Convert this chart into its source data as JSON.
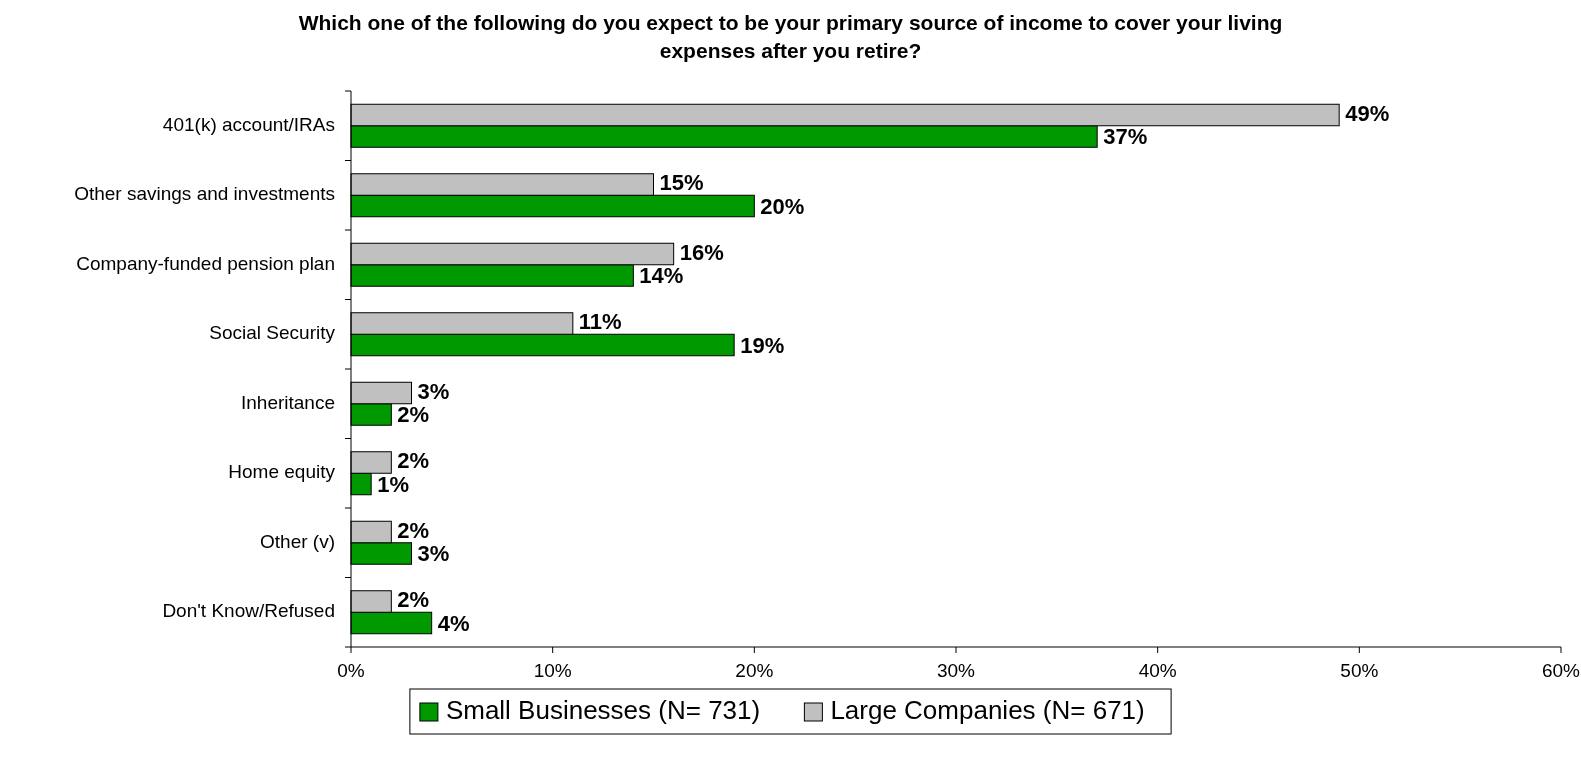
{
  "chart_data": {
    "type": "bar",
    "orientation": "horizontal",
    "title": "Which one of the following do you expect to be your primary source of income to cover your living expenses after you retire?",
    "categories": [
      "401(k) account/IRAs",
      "Other savings and investments",
      "Company-funded pension plan",
      "Social Security",
      "Inheritance",
      "Home equity",
      "Other  (v)",
      "Don't Know/Refused"
    ],
    "series": [
      {
        "name": "Small Businesses (N= 731)",
        "color": "#009900",
        "values": [
          37,
          20,
          14,
          19,
          2,
          1,
          3,
          4
        ],
        "value_labels": [
          "37%",
          "20%",
          "14%",
          "19%",
          "2%",
          "1%",
          "3%",
          "4%"
        ]
      },
      {
        "name": "Large Companies (N= 671)",
        "color": "#c0c0c0",
        "values": [
          49,
          15,
          16,
          11,
          3,
          2,
          2,
          2
        ],
        "value_labels": [
          "49%",
          "15%",
          "16%",
          "11%",
          "3%",
          "2%",
          "2%",
          "2%"
        ]
      }
    ],
    "xlim": [
      0,
      60
    ],
    "xticks": [
      {
        "value": 0,
        "label": "0%"
      },
      {
        "value": 10,
        "label": "10%"
      },
      {
        "value": 20,
        "label": "20%"
      },
      {
        "value": 30,
        "label": "30%"
      },
      {
        "value": 40,
        "label": "40%"
      },
      {
        "value": 50,
        "label": "50%"
      },
      {
        "value": 60,
        "label": "60%"
      }
    ],
    "legend": "bottom",
    "grid": false
  }
}
